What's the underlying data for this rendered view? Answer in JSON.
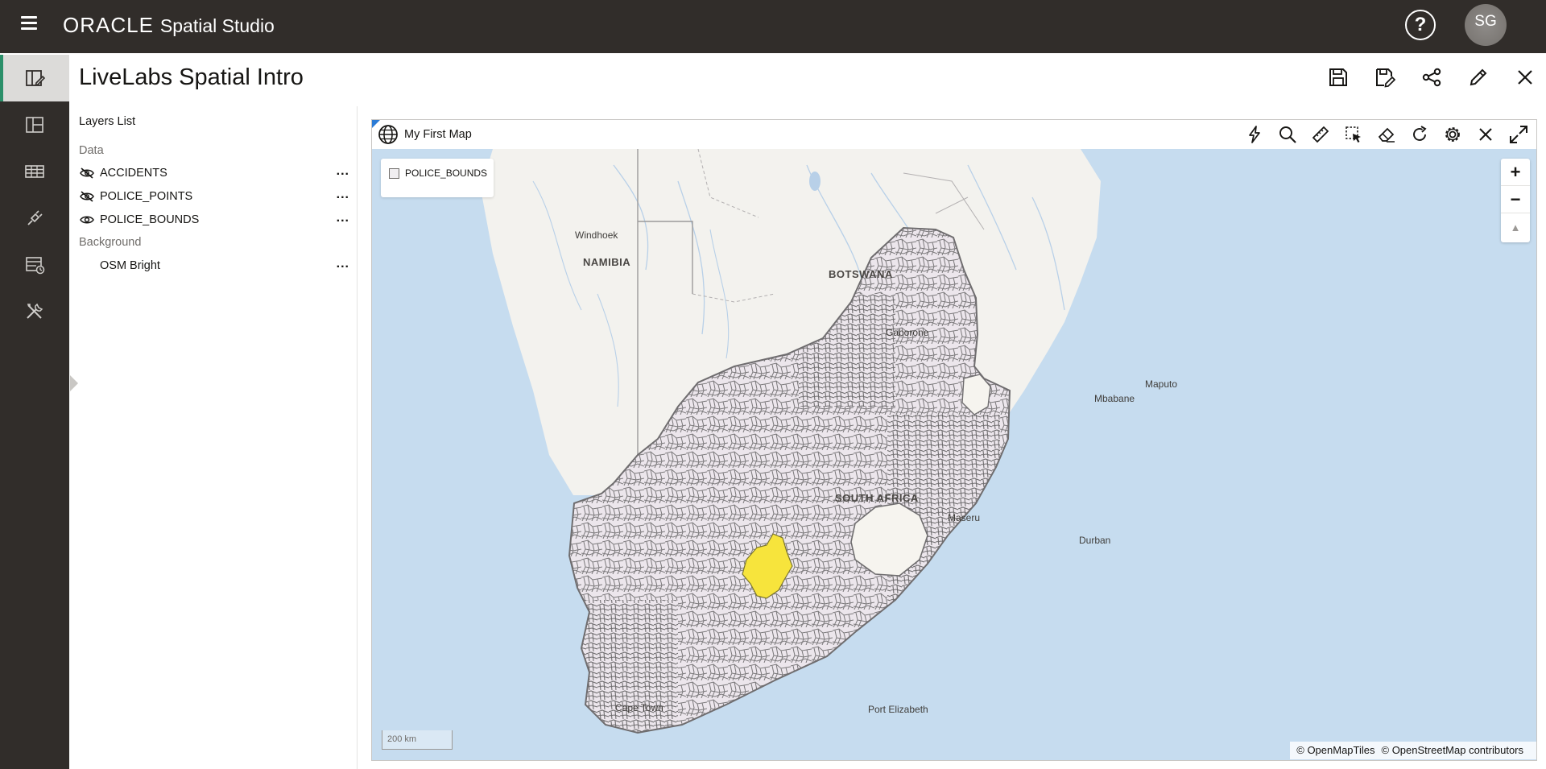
{
  "app": {
    "brand": "ORACLE",
    "product": "Spatial Studio",
    "user_initials": "SG",
    "help_symbol": "?"
  },
  "nav_rail": {
    "items": [
      {
        "icon": "project-icon",
        "active": true
      },
      {
        "icon": "dashboard-icon",
        "active": false
      },
      {
        "icon": "datasets-icon",
        "active": false
      },
      {
        "icon": "connections-icon",
        "active": false
      },
      {
        "icon": "jobs-icon",
        "active": false
      },
      {
        "icon": "tools-icon",
        "active": false
      }
    ]
  },
  "project": {
    "title": "LiveLabs Spatial Intro",
    "tools": [
      "save-icon",
      "save-as-icon",
      "share-icon",
      "edit-icon",
      "close-icon"
    ]
  },
  "layers_panel": {
    "title": "Layers List",
    "data_section": "Data",
    "background_section": "Background",
    "layers": [
      {
        "name": "ACCIDENTS",
        "visible": false,
        "more": "..."
      },
      {
        "name": "POLICE_POINTS",
        "visible": false,
        "more": "..."
      },
      {
        "name": "POLICE_BOUNDS",
        "visible": true,
        "more": "..."
      }
    ],
    "background": {
      "name": "OSM Bright",
      "more": "..."
    }
  },
  "map": {
    "name": "My First Map",
    "tools": [
      "lightning-icon",
      "search-icon",
      "measure-icon",
      "select-icon",
      "eraser-icon",
      "refresh-icon",
      "settings-icon",
      "close-icon",
      "expand-icon"
    ],
    "legend_label": "POLICE_BOUNDS",
    "zoom_in": "+",
    "zoom_out": "−",
    "compass": "▲",
    "scale": "200 km",
    "attribution": [
      "© OpenMapTiles",
      "© OpenStreetMap contributors"
    ],
    "places": {
      "windhoek": "Windhoek",
      "namibia": "NAMIBIA",
      "botswana": "BOTSWANA",
      "gaborone": "Gaborone",
      "maputo": "Maputo",
      "mbabane": "Mbabane",
      "south_africa": "SOUTH AFRICA",
      "maseru": "Maseru",
      "durban": "Durban",
      "cape_town": "Cape Town",
      "port_elizabeth": "Port Elizabeth"
    },
    "colors": {
      "ocean": "#c6dcef",
      "land": "#f3f2ee",
      "region_fill": "#ece6ec",
      "region_stroke": "#7a787a",
      "highlight": "#f7e43c"
    }
  }
}
